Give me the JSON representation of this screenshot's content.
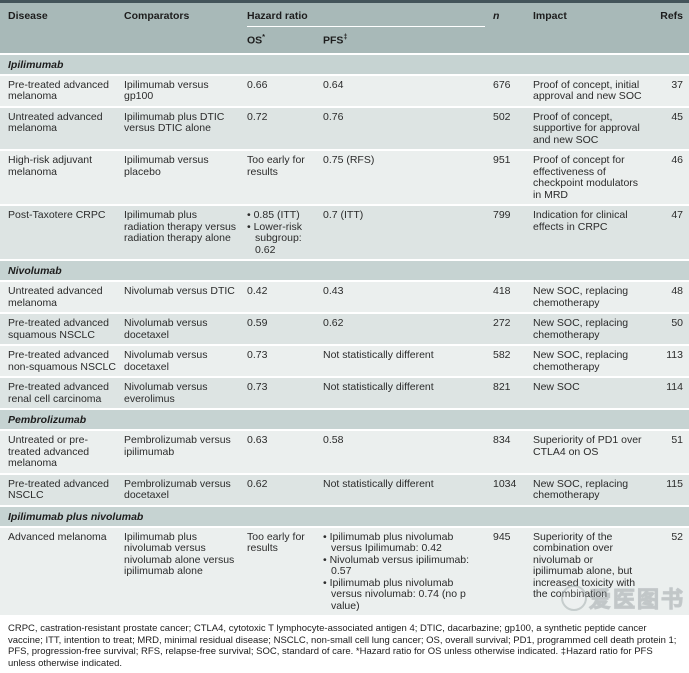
{
  "header": {
    "disease": "Disease",
    "comparators": "Comparators",
    "hazard_ratio": "Hazard ratio",
    "os": "OS",
    "os_sup": "*",
    "pfs": "PFS",
    "pfs_sup": "‡",
    "n": "n",
    "impact": "Impact",
    "refs": "Refs"
  },
  "sections": [
    {
      "title": "Ipilimumab",
      "rows": [
        {
          "disease": "Pre-treated advanced melanoma",
          "comparators": "Ipilimumab versus gp100",
          "os": "0.66",
          "pfs": "0.64",
          "n": "676",
          "impact": "Proof of concept, initial approval and new SOC",
          "refs": "37"
        },
        {
          "disease": "Untreated advanced melanoma",
          "comparators": "Ipilimumab plus DTIC versus DTIC alone",
          "os": "0.72",
          "pfs": "0.76",
          "n": "502",
          "impact": "Proof of concept, supportive for approval and new SOC",
          "refs": "45"
        },
        {
          "disease": "High-risk adjuvant melanoma",
          "comparators": "Ipilimumab versus placebo",
          "os": "Too early for results",
          "pfs": "0.75 (RFS)",
          "n": "951",
          "impact": "Proof of concept for effectiveness of checkpoint modulators in MRD",
          "refs": "46"
        },
        {
          "disease": "Post-Taxotere CRPC",
          "comparators": "Ipilimumab plus radiation therapy versus radiation therapy alone",
          "os": [
            "0.85 (ITT)",
            "Lower-risk subgroup: 0.62"
          ],
          "pfs": "0.7 (ITT)",
          "n": "799",
          "impact": "Indication for clinical effects in CRPC",
          "refs": "47"
        }
      ]
    },
    {
      "title": "Nivolumab",
      "rows": [
        {
          "disease": "Untreated advanced melanoma",
          "comparators": "Nivolumab versus DTIC",
          "os": "0.42",
          "pfs": "0.43",
          "n": "418",
          "impact": "New SOC, replacing chemotherapy",
          "refs": "48"
        },
        {
          "disease": "Pre-treated advanced squamous NSCLC",
          "comparators": "Nivolumab versus docetaxel",
          "os": "0.59",
          "pfs": "0.62",
          "n": "272",
          "impact": "New SOC, replacing chemotherapy",
          "refs": "50"
        },
        {
          "disease": "Pre-treated advanced non-squamous NSCLC",
          "comparators": "Nivolumab versus docetaxel",
          "os": "0.73",
          "pfs": "Not statistically different",
          "n": "582",
          "impact": "New SOC, replacing chemotherapy",
          "refs": "113"
        },
        {
          "disease": "Pre-treated advanced renal cell carcinoma",
          "comparators": "Nivolumab versus everolimus",
          "os": "0.73",
          "pfs": "Not statistically different",
          "n": "821",
          "impact": "New SOC",
          "refs": "114"
        }
      ]
    },
    {
      "title": "Pembrolizumab",
      "rows": [
        {
          "disease": "Untreated or pre-treated advanced melanoma",
          "comparators": "Pembrolizumab versus ipilimumab",
          "os": "0.63",
          "pfs": "0.58",
          "n": "834",
          "impact": "Superiority of PD1 over CTLA4 on OS",
          "refs": "51"
        },
        {
          "disease": "Pre-treated advanced NSCLC",
          "comparators": "Pembrolizumab versus docetaxel",
          "os": "0.62",
          "pfs": "Not statistically different",
          "n": "1034",
          "impact": "New SOC, replacing chemotherapy",
          "refs": "115"
        }
      ]
    },
    {
      "title": "Ipilimumab plus nivolumab",
      "rows": [
        {
          "disease": "Advanced melanoma",
          "comparators": "Ipilimumab plus nivolumab versus nivolumab alone versus ipilimumab alone",
          "os": "Too early for results",
          "pfs": [
            "Ipilimumab plus nivolumab versus Ipilimumab: 0.42",
            "Nivolumab versus ipilimumab: 0.57",
            "Ipilimumab plus nivolumab versus nivolumab: 0.74 (no p value)"
          ],
          "n": "945",
          "impact": "Superiority of the combination over nivolumab or ipilimumab alone, but increased toxicity with the combination",
          "refs": "52"
        }
      ]
    }
  ],
  "footnote": "CRPC, castration-resistant prostate cancer; CTLA4, cytotoxic T lymphocyte-associated antigen 4; DTIC, dacarbazine; gp100, a synthetic peptide cancer vaccine; ITT, intention to treat; MRD, minimal residual disease; NSCLC, non-small cell lung cancer; OS, overall survival; PD1, programmed cell death protein 1; PFS, progression-free survival; RFS, relapse-free survival; SOC, standard of care. *Hazard ratio for OS unless otherwise indicated. ‡Hazard ratio for PFS unless otherwise indicated.",
  "watermark": {
    "text": "爱医图书"
  },
  "colors": {
    "header_bg": "#a8b9b8",
    "section_bg": "#c6d3d2",
    "row_light": "#ebefee",
    "row_dark": "#dde4e3",
    "top_border": "#43545a"
  }
}
